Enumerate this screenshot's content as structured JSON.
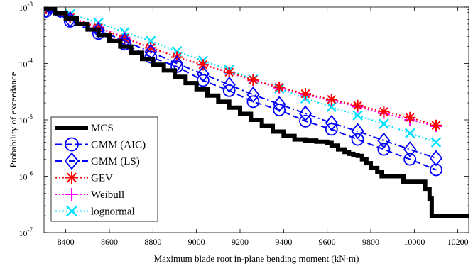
{
  "chart_data": {
    "type": "line",
    "title": "",
    "xlabel": "Maximum blade root in-plane bending moment (kN·m)",
    "ylabel": "Probability of exceedance",
    "xlim": [
      8300,
      10250
    ],
    "ylim": [
      1e-07,
      0.001
    ],
    "yscale": "log",
    "x_ticks": [
      8400,
      8600,
      8800,
      9000,
      9200,
      9400,
      9600,
      9800,
      10000,
      10200
    ],
    "y_ticks": [
      {
        "value": 1e-07,
        "base": "10",
        "exp": "-7"
      },
      {
        "value": 1e-06,
        "base": "10",
        "exp": "-6"
      },
      {
        "value": 1e-05,
        "base": "10",
        "exp": "-5"
      },
      {
        "value": 0.0001,
        "base": "10",
        "exp": "-4"
      },
      {
        "value": 0.001,
        "base": "10",
        "exp": "-3"
      }
    ],
    "grid": false,
    "legend_position": "bottom-left",
    "series": [
      {
        "name": "MCS",
        "color": "#000000",
        "style": "solid",
        "marker": "none",
        "step": true,
        "x": [
          8300,
          8350,
          8400,
          8450,
          8500,
          8550,
          8600,
          8650,
          8700,
          8750,
          8800,
          8850,
          8900,
          8950,
          9000,
          9050,
          9100,
          9150,
          9200,
          9250,
          9300,
          9350,
          9400,
          9450,
          9500,
          9550,
          9600,
          9620,
          9650,
          9680,
          9700,
          9720,
          9740,
          9760,
          9780,
          9800,
          9830,
          9850,
          9870,
          9900,
          9950,
          9970,
          10000,
          10050,
          10060,
          10070,
          10080,
          10100,
          10250
        ],
        "y": [
          0.00095,
          0.00078,
          0.00063,
          0.0005,
          0.0004,
          0.00032,
          0.00025,
          0.0002,
          0.000155,
          0.00012,
          9.5e-05,
          7.5e-05,
          5.8e-05,
          4.5e-05,
          3.5e-05,
          2.7e-05,
          2.1e-05,
          1.65e-05,
          1.28e-05,
          1e-05,
          7.8e-06,
          6.2e-06,
          5.2e-06,
          4.5e-06,
          4.3e-06,
          4.1e-06,
          3.9e-06,
          3.5e-06,
          3e-06,
          2.7e-06,
          2.5e-06,
          2.4e-06,
          2.3e-06,
          2e-06,
          1.7e-06,
          1.4e-06,
          1.2e-06,
          1e-06,
          1e-06,
          1e-06,
          8e-07,
          8e-07,
          8e-07,
          6e-07,
          6e-07,
          4e-07,
          2e-07,
          2e-07,
          2e-07
        ]
      },
      {
        "name": "GMM (AIC)",
        "color": "#0000ff",
        "style": "dashed",
        "marker": "circle",
        "x": [
          8310,
          8420,
          8550,
          8670,
          8790,
          8910,
          9030,
          9150,
          9260,
          9380,
          9500,
          9620,
          9740,
          9860,
          9980,
          10100
        ],
        "y": [
          0.00085,
          0.00056,
          0.00034,
          0.00022,
          0.00013,
          8.8e-05,
          5e-05,
          3.3e-05,
          2.1e-05,
          1.5e-05,
          9.5e-06,
          6.8e-06,
          4.5e-06,
          3e-06,
          2e-06,
          1.3e-06
        ]
      },
      {
        "name": "GMM (LS)",
        "color": "#0000ff",
        "style": "dashdot",
        "marker": "diamond",
        "x": [
          8310,
          8420,
          8550,
          8670,
          8790,
          8910,
          9030,
          9150,
          9260,
          9380,
          9500,
          9620,
          9740,
          9860,
          9980,
          10100
        ],
        "y": [
          0.00088,
          0.0006,
          0.00039,
          0.00025,
          0.00016,
          0.0001,
          6.5e-05,
          4.2e-05,
          2.8e-05,
          1.9e-05,
          1.3e-05,
          8.8e-06,
          6.3e-06,
          4.3e-06,
          3e-06,
          2.1e-06
        ]
      },
      {
        "name": "GEV",
        "color": "#ff0000",
        "style": "dotted",
        "marker": "asterisk",
        "x": [
          8310,
          8420,
          8550,
          8670,
          8790,
          8910,
          9030,
          9150,
          9260,
          9380,
          9500,
          9620,
          9740,
          9860,
          9980,
          10100
        ],
        "y": [
          0.00095,
          0.00065,
          0.00043,
          0.00028,
          0.00019,
          0.00013,
          9.5e-05,
          7e-05,
          5.1e-05,
          3.8e-05,
          2.9e-05,
          2.3e-05,
          1.8e-05,
          1.4e-05,
          1.1e-05,
          8e-06
        ]
      },
      {
        "name": "Weibull",
        "color": "#ff00ff",
        "style": "dotted",
        "marker": "plus",
        "x": [
          8310,
          8420,
          8550,
          8670,
          8790,
          8910,
          9030,
          9150,
          9260,
          9380,
          9500,
          9620,
          9740,
          9860,
          9980,
          10100
        ],
        "y": [
          0.00095,
          0.00066,
          0.00044,
          0.00029,
          0.00019,
          0.00013,
          9.5e-05,
          6.9e-05,
          5e-05,
          3.7e-05,
          2.8e-05,
          2.2e-05,
          1.7e-05,
          1.3e-05,
          1e-05,
          7.7e-06
        ]
      },
      {
        "name": "lognormal",
        "color": "#00e0ff",
        "style": "dotted",
        "marker": "x",
        "x": [
          8310,
          8420,
          8550,
          8670,
          8790,
          8910,
          9030,
          9150,
          9260,
          9380,
          9500,
          9620,
          9740,
          9860,
          9980,
          10100
        ],
        "y": [
          0.00097,
          0.00075,
          0.00053,
          0.00036,
          0.00025,
          0.000165,
          0.000112,
          7.7e-05,
          5.2e-05,
          3.6e-05,
          2.4e-05,
          1.7e-05,
          1.2e-05,
          8.5e-06,
          5.8e-06,
          4e-06
        ]
      }
    ]
  }
}
